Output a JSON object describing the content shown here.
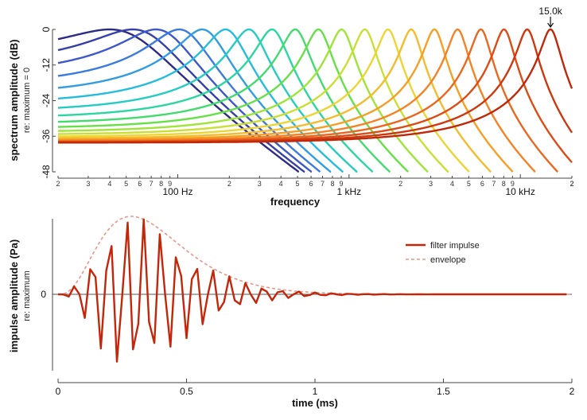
{
  "chart_data": [
    {
      "type": "line",
      "title": "",
      "xlabel": "frequency",
      "ylabel": "spectrum amplitude (dB)",
      "ylabel_sub": "re: maximum = 0",
      "xscale": "log",
      "xlim": [
        20,
        20000
      ],
      "ylim": [
        -48,
        0
      ],
      "yticks": [
        0,
        -12,
        -24,
        -36,
        -48
      ],
      "ytick_labels": [
        "0",
        "-12",
        "-24",
        "-36",
        "-48"
      ],
      "decade_labels": [
        {
          "value": 100,
          "label": "100 Hz"
        },
        {
          "value": 1000,
          "label": "1 kHz"
        },
        {
          "value": 10000,
          "label": "10 kHz"
        }
      ],
      "minor_tick_digits": [
        "2",
        "3",
        "4",
        "5",
        "6",
        "7",
        "8",
        "9"
      ],
      "series_description": "gammatone filter magnitude responses",
      "center_frequencies_hz": [
        40,
        54.6,
        74.6,
        102,
        139,
        190,
        260,
        355,
        485,
        662,
        905,
        1236,
        1688,
        2306,
        3150,
        4303,
        5878,
        8030,
        10969,
        15000
      ],
      "filter_order": 4,
      "palette": [
        "#2d2b86",
        "#3f4fc4",
        "#3a8be6",
        "#22c2dc",
        "#2ad6a6",
        "#52de4e",
        "#b4e632",
        "#f0d434",
        "#f8a424",
        "#f07424",
        "#d84412",
        "#c0280a"
      ],
      "annotation": {
        "label": "15.0k",
        "x": 15000,
        "y": 0
      }
    },
    {
      "type": "line",
      "xlabel": "time (ms)",
      "ylabel": "impulse amplitude (Pa)",
      "ylabel_sub": "re: maximum",
      "xlim": [
        0,
        2
      ],
      "ylim": [
        -1,
        1
      ],
      "xticks": [
        0,
        0.5,
        1,
        1.5,
        2
      ],
      "xtick_labels": [
        "0",
        "0.5",
        "1",
        "1.5",
        "2"
      ],
      "yticks": [
        0
      ],
      "ytick_labels": [
        "0"
      ],
      "center_frequency_hz": 15000,
      "filter_order": 4,
      "series": [
        {
          "name": "filter impulse",
          "color": "#c4260a",
          "style": "solid"
        },
        {
          "name": "envelope",
          "color": "#e8988a",
          "style": "dashed"
        }
      ],
      "legend_position": "right"
    }
  ]
}
